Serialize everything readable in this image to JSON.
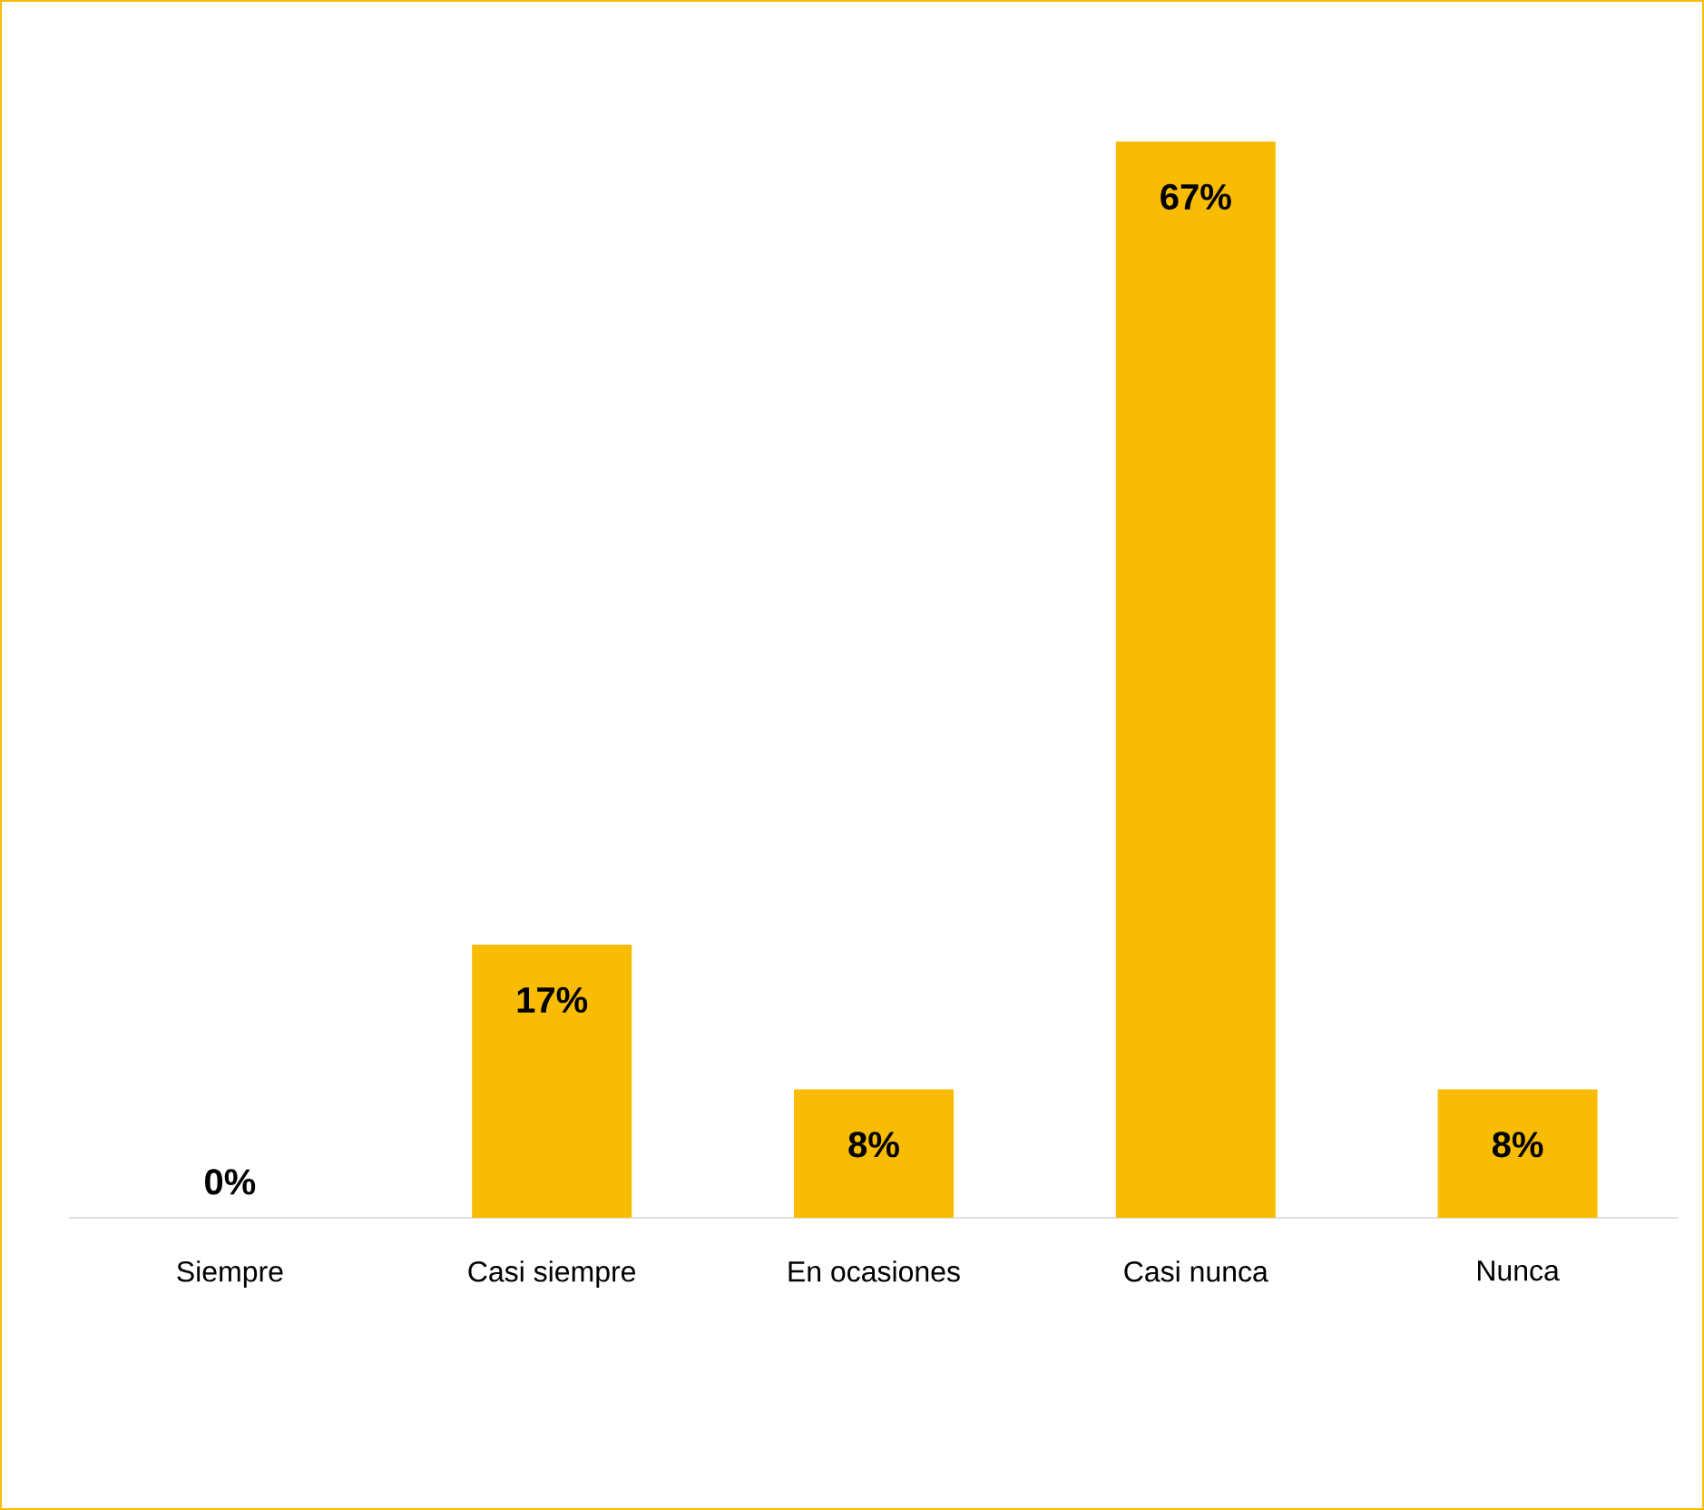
{
  "chart_data": {
    "type": "bar",
    "categories": [
      "Siempre",
      "Casi siempre",
      "En ocasiones",
      "Casi nunca",
      "Nunca"
    ],
    "values": [
      0,
      17,
      8,
      67,
      8
    ],
    "value_labels": [
      "0%",
      "17%",
      "8%",
      "67%",
      "8%"
    ],
    "color": "#f9bc05"
  }
}
